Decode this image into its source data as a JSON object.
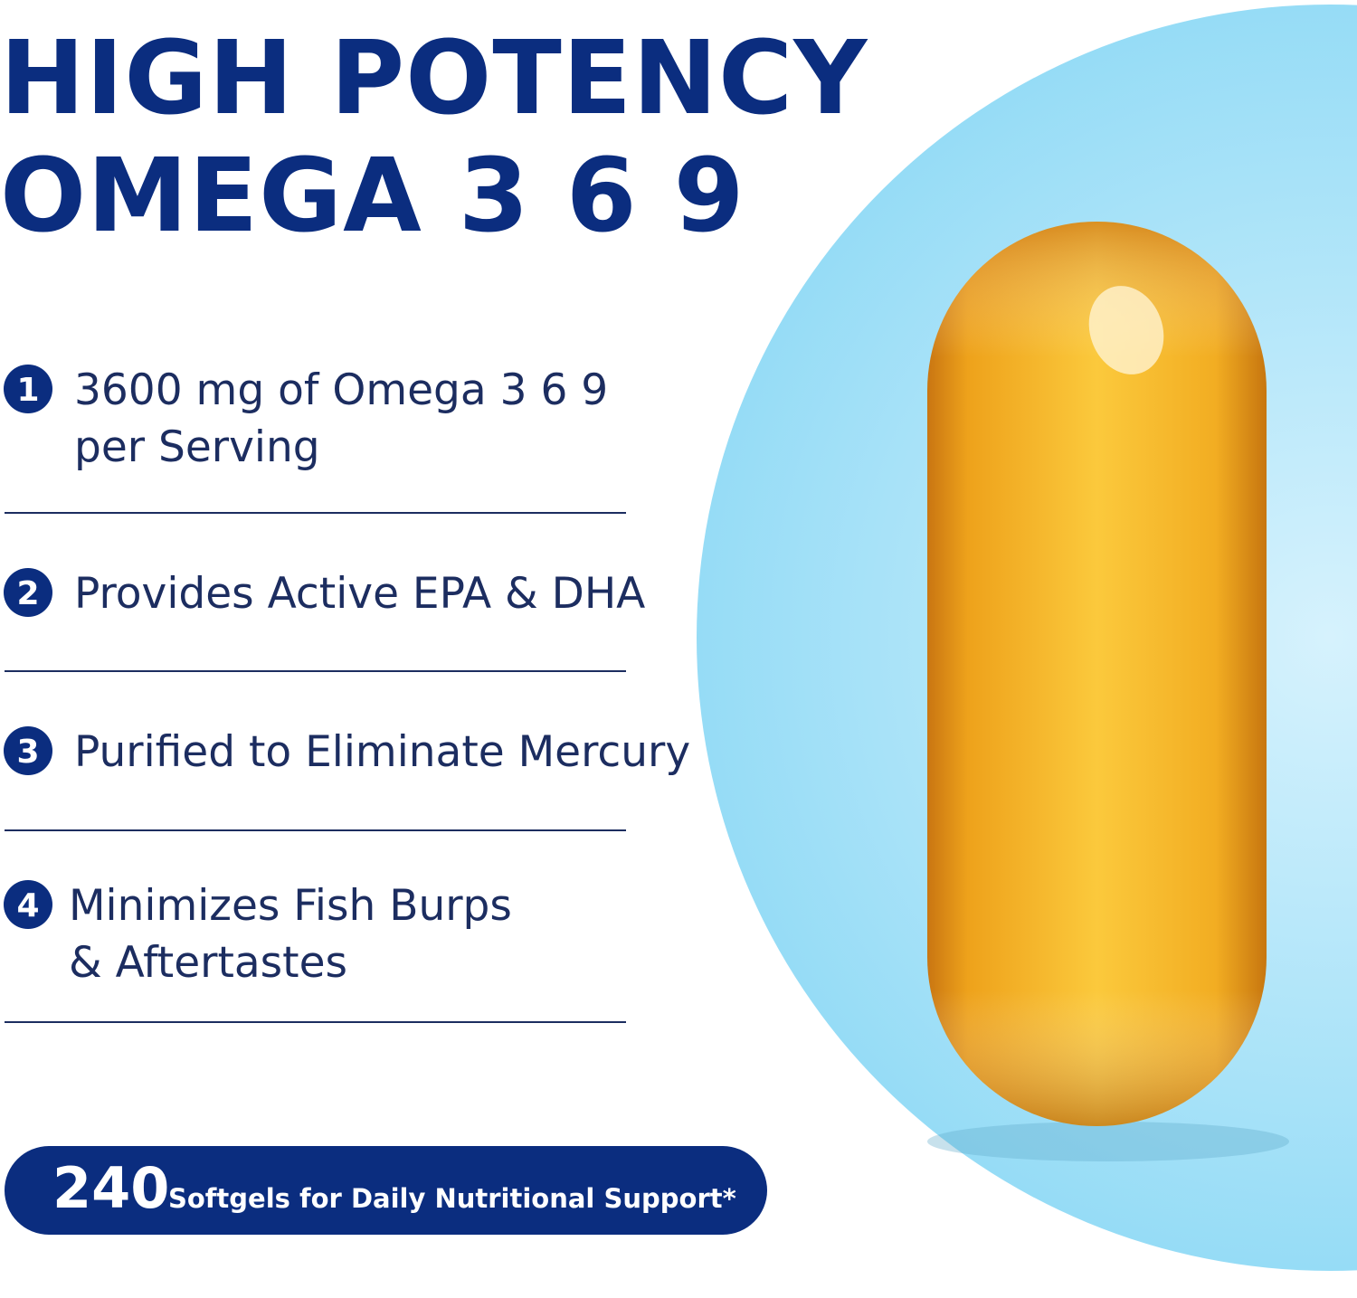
{
  "header": {
    "title": [
      "HIGH POTENCY",
      "OMEGA 3 6 9"
    ]
  },
  "features": [
    {
      "number": "1",
      "lines": [
        "3600 mg of Omega 3 6 9",
        "per Serving"
      ]
    },
    {
      "number": "2",
      "lines": [
        "Provides Active EPA & DHA"
      ]
    },
    {
      "number": "3",
      "lines": [
        "Purified to Eliminate Mercury"
      ]
    },
    {
      "number": "4",
      "lines": [
        "Minimizes Fish Burps",
        "& Aftertastes"
      ]
    }
  ],
  "badge": {
    "count": "240",
    "text": "Softgels for Daily Nutritional Support*"
  }
}
